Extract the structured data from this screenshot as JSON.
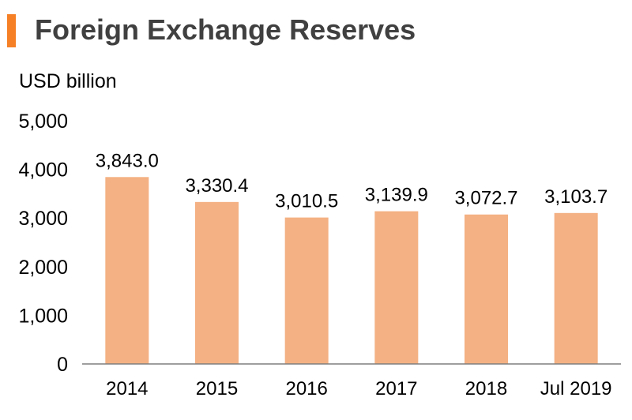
{
  "title": "Foreign Exchange Reserves",
  "colors": {
    "accent": "#f58025",
    "bar": "#f4b183",
    "axis": "#7f7f7f",
    "title": "#404040"
  },
  "chart_data": {
    "type": "bar",
    "ylabel": "USD billion",
    "xlabel": "",
    "categories": [
      "2014",
      "2015",
      "2016",
      "2017",
      "2018",
      "Jul 2019"
    ],
    "values": [
      3843.0,
      3330.4,
      3010.5,
      3139.9,
      3072.7,
      3103.7
    ],
    "value_labels": [
      "3,843.0",
      "3,330.4",
      "3,010.5",
      "3,139.9",
      "3,072.7",
      "3,103.7"
    ],
    "ylim": [
      0,
      5000
    ],
    "yticks": [
      0,
      1000,
      2000,
      3000,
      4000,
      5000
    ],
    "ytick_labels": [
      "0",
      "1,000",
      "2,000",
      "3,000",
      "4,000",
      "5,000"
    ],
    "grid": false,
    "legend": "none"
  }
}
